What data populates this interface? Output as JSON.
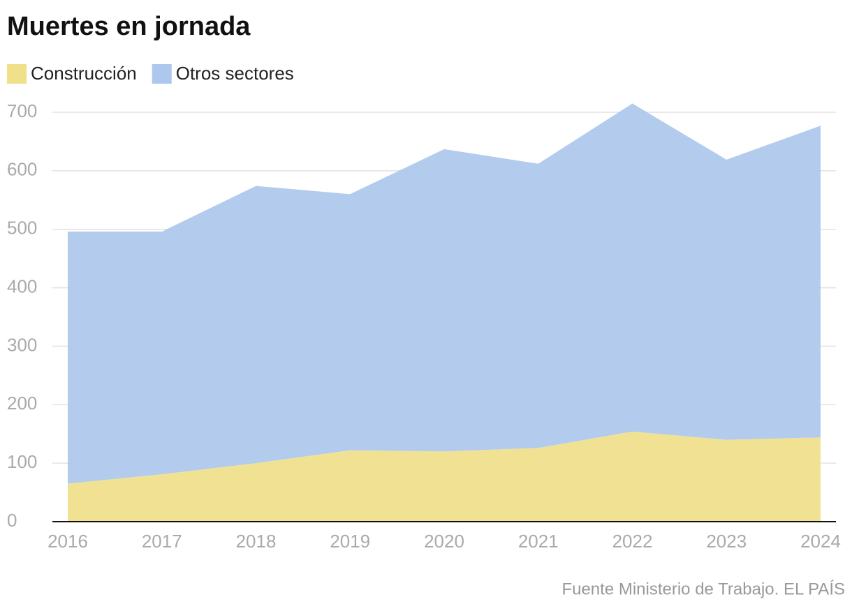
{
  "chart_data": {
    "type": "stacked_area",
    "title": "Muertes en jornada",
    "categories": [
      "2016",
      "2017",
      "2018",
      "2019",
      "2020",
      "2021",
      "2022",
      "2023",
      "2024"
    ],
    "series": [
      {
        "name": "Construcción",
        "color": "#f0e08a",
        "values": [
          65,
          81,
          100,
          122,
          120,
          126,
          154,
          140,
          144
        ]
      },
      {
        "name": "Otros sectores",
        "color": "#adc8ec",
        "values": [
          431,
          415,
          474,
          438,
          517,
          486,
          561,
          479,
          533
        ]
      }
    ],
    "ylim": [
      0,
      700
    ],
    "yticks": [
      0,
      100,
      200,
      300,
      400,
      500,
      600,
      700
    ],
    "grid": true,
    "source": "Fuente Ministerio de Trabajo. EL PAÍS"
  }
}
